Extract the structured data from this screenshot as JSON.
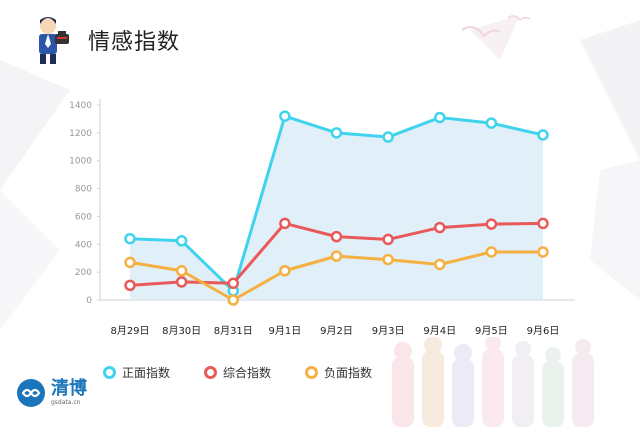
{
  "header": {
    "title": "情感指数"
  },
  "colors": {
    "positive": "#3fd3ee",
    "composite": "#e85a5a",
    "negative": "#f5b042",
    "area_fill": "#dcecf7",
    "axis": "#cfcfcf",
    "tick_text": "#999999",
    "label_text": "#222222"
  },
  "chart_data": {
    "type": "line",
    "title": "情感指数",
    "categories": [
      "8月29日",
      "8月30日",
      "8月31日",
      "9月1日",
      "9月2日",
      "9月3日",
      "9月4日",
      "9月5日",
      "9月6日"
    ],
    "ylim": [
      0,
      1400
    ],
    "yticks": [
      "0",
      "200",
      "400",
      "600",
      "800",
      "1000",
      "1200",
      "1400"
    ],
    "grid": false,
    "legend_position": "bottom-left",
    "series": [
      {
        "name": "正面指数",
        "color_key": "positive",
        "area": true,
        "values": [
          440,
          425,
          65,
          1320,
          1200,
          1170,
          1310,
          1270,
          1185
        ]
      },
      {
        "name": "综合指数",
        "color_key": "composite",
        "area": false,
        "values": [
          105,
          130,
          120,
          550,
          455,
          435,
          520,
          545,
          550
        ]
      },
      {
        "name": "负面指数",
        "color_key": "negative",
        "area": false,
        "values": [
          270,
          210,
          0,
          210,
          315,
          290,
          255,
          345,
          345
        ]
      }
    ]
  },
  "logo": {
    "name": "清博",
    "sub": "gsdata.cn"
  }
}
